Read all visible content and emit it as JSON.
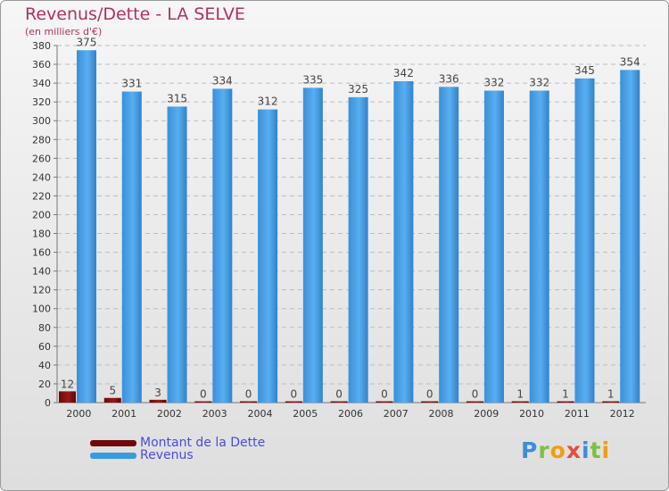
{
  "chart_data": {
    "type": "bar",
    "title": "Revenus/Dette - LA SELVE",
    "subtitle": "(en milliers d'€)",
    "categories": [
      "2000",
      "2001",
      "2002",
      "2003",
      "2004",
      "2005",
      "2006",
      "2007",
      "2008",
      "2009",
      "2010",
      "2011",
      "2012"
    ],
    "series": [
      {
        "name": "Montant de la Dette",
        "color": "#7a0b0b",
        "values": [
          12,
          5,
          3,
          0,
          0,
          0,
          0,
          0,
          0,
          0,
          1,
          1,
          1
        ]
      },
      {
        "name": "Revenus",
        "color": "#3a9ae0",
        "values": [
          375,
          331,
          315,
          334,
          312,
          335,
          325,
          342,
          336,
          332,
          332,
          345,
          354
        ]
      }
    ],
    "ylim": [
      0,
      380
    ],
    "yticks": [
      0,
      20,
      40,
      60,
      80,
      100,
      120,
      140,
      160,
      180,
      200,
      220,
      240,
      260,
      280,
      300,
      320,
      340,
      360,
      380
    ],
    "grid": true,
    "legend": "bottom-left"
  },
  "logo": {
    "text": "Proxiti",
    "letters": [
      {
        "char": "P",
        "color": "#3a8fd8"
      },
      {
        "char": "r",
        "color": "#7cc142"
      },
      {
        "char": "o",
        "color": "#f39c12"
      },
      {
        "char": "x",
        "color": "#e74c3c"
      },
      {
        "char": "i",
        "color": "#3a8fd8"
      },
      {
        "char": "t",
        "color": "#7cc142"
      },
      {
        "char": "i",
        "color": "#f39c12"
      }
    ]
  }
}
